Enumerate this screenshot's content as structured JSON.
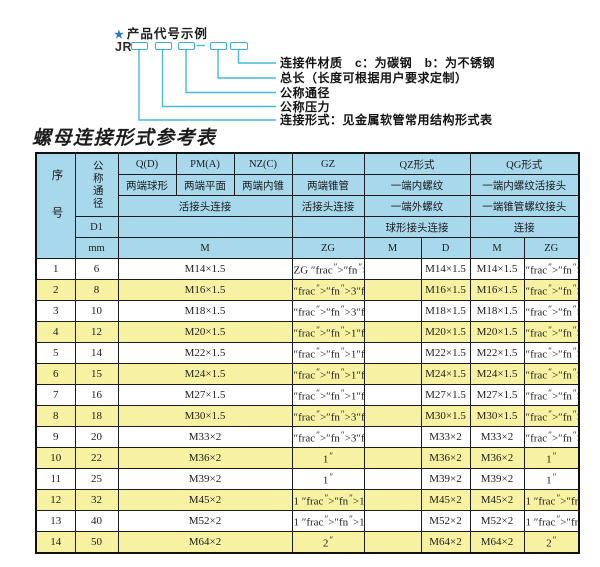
{
  "colors": {
    "header_bg": "#a7d8ec",
    "row_alt_bg": "#f7f1a2",
    "accent_teal": "#39aed2",
    "star_blue": "#2b78c9",
    "border": "#1b1b1b"
  },
  "diagram": {
    "star_icon": "★",
    "heading": "产品代号示例",
    "code_prefix": "JR",
    "labels": [
      "连接件材质　c：为碳钢　b：为不锈钢",
      "总长（长度可根据用户要求定制）",
      "公称通径",
      "公称压力",
      "连接形式：见金属软管常用结构形式表"
    ]
  },
  "table": {
    "title": "螺母连接形式参考表",
    "header": {
      "seq": "序号",
      "dn": "公称通径",
      "d1": "D1",
      "mm": "mm",
      "q_code": "Q(D)",
      "q_desc": "两端球形",
      "pm_code": "PM(A)",
      "pm_desc": "两端平面",
      "nz_code": "NZ(C)",
      "nz_desc": "两端内锥",
      "gz_code": "GZ",
      "gz_desc": "两端锥管",
      "gz_row3": "活接头连接",
      "gz_unit": "ZG",
      "qpmnz_row3": "活接头连接",
      "qpmnz_unit": "M",
      "qz_code": "QZ形式",
      "qz_row2": "一端内螺纹",
      "qz_row3": "一端外螺纹",
      "qz_row4": "球形接头连接",
      "qz_unit_m": "M",
      "qz_unit_d": "D",
      "qg_code": "QG形式",
      "qg_row2": "一端内螺纹活接头",
      "qg_row3": "一端锥管螺纹接头",
      "qg_row4": "连接",
      "qg_unit_m": "M",
      "qg_unit_zg": "ZG"
    },
    "rows": [
      [
        "1",
        "6",
        "M14×1.5",
        "ZG 1/4\"",
        "",
        "M14×1.5",
        "M14×1.5",
        "1/4\""
      ],
      [
        "2",
        "8",
        "M16×1.5",
        "3/8\"",
        "",
        "M16×1.5",
        "M16×1.5",
        "3/8\""
      ],
      [
        "3",
        "10",
        "M18×1.5",
        "3/8\"",
        "",
        "M18×1.5",
        "M18×1.5",
        "3/8\""
      ],
      [
        "4",
        "12",
        "M20×1.5",
        "1/2\"",
        "",
        "M20×1.5",
        "M20×1.5",
        "1/2\""
      ],
      [
        "5",
        "14",
        "M22×1.5",
        "1/2\"",
        "",
        "M22×1.5",
        "M22×1.5",
        "1/2\""
      ],
      [
        "6",
        "15",
        "M24×1.5",
        "1/2\"",
        "",
        "M24×1.5",
        "M24×1.5",
        "1/2\""
      ],
      [
        "7",
        "16",
        "M27×1.5",
        "1/2\"",
        "",
        "M27×1.5",
        "M27×1.5",
        "1/2\""
      ],
      [
        "8",
        "18",
        "M30×1.5",
        "3/4\"",
        "",
        "M30×1.5",
        "M30×1.5",
        "3/4\""
      ],
      [
        "9",
        "20",
        "M33×2",
        "3/4\"",
        "",
        "M33×2",
        "M33×2",
        "3/4\""
      ],
      [
        "10",
        "22",
        "M36×2",
        "1\"",
        "",
        "M36×2",
        "M36×2",
        "1\""
      ],
      [
        "11",
        "25",
        "M39×2",
        "1\"",
        "",
        "M39×2",
        "M39×2",
        "1\""
      ],
      [
        "12",
        "32",
        "M45×2",
        "1 1/4\"",
        "",
        "M45×2",
        "M45×2",
        "1 1/4\""
      ],
      [
        "13",
        "40",
        "M52×2",
        "1 1/2\"",
        "",
        "M52×2",
        "M52×2",
        "1 1/2\""
      ],
      [
        "14",
        "50",
        "M64×2",
        "2\"",
        "",
        "M64×2",
        "M64×2",
        "2\""
      ]
    ]
  }
}
